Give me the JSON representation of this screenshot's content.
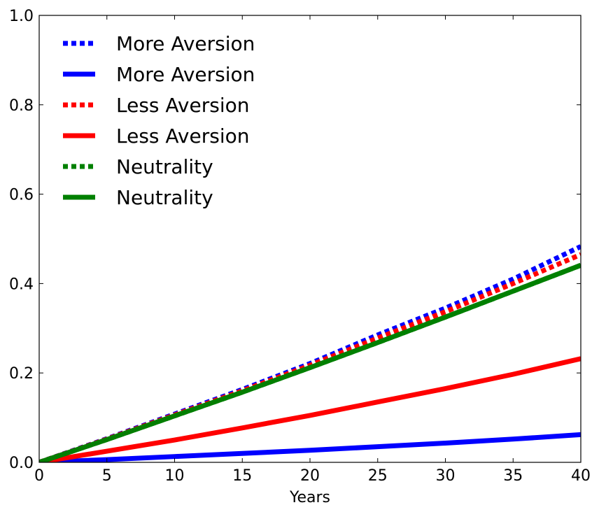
{
  "chart_data": {
    "type": "line",
    "title": "",
    "xlabel": "Years",
    "ylabel": "",
    "xlim": [
      0,
      40
    ],
    "ylim": [
      0,
      1.0
    ],
    "x_ticks": [
      0,
      5,
      10,
      15,
      20,
      25,
      30,
      35,
      40
    ],
    "y_ticks": [
      0.0,
      0.2,
      0.4,
      0.6,
      0.8,
      1.0
    ],
    "x_tick_labels": [
      "0",
      "5",
      "10",
      "15",
      "20",
      "25",
      "30",
      "35",
      "40"
    ],
    "y_tick_labels": [
      "0.0",
      "0.2",
      "0.4",
      "0.6",
      "0.8",
      "1.0"
    ],
    "legend_position": "top-left",
    "grid": false,
    "x": [
      0,
      5,
      10,
      15,
      20,
      25,
      30,
      35,
      40
    ],
    "series": [
      {
        "name": "More Aversion",
        "style": "dotted",
        "color": "#0000ff",
        "values": [
          0.0,
          0.053,
          0.108,
          0.163,
          0.221,
          0.285,
          0.345,
          0.41,
          0.483
        ]
      },
      {
        "name": "More Aversion",
        "style": "solid",
        "color": "#0000ff",
        "values": [
          0.0,
          0.006,
          0.013,
          0.02,
          0.027,
          0.035,
          0.043,
          0.052,
          0.062
        ]
      },
      {
        "name": "Less Aversion",
        "style": "dotted",
        "color": "#ff0000",
        "values": [
          0.0,
          0.052,
          0.106,
          0.16,
          0.217,
          0.278,
          0.337,
          0.4,
          0.465
        ]
      },
      {
        "name": "Less Aversion",
        "style": "solid",
        "color": "#ff0000",
        "values": [
          0.0,
          0.025,
          0.05,
          0.077,
          0.105,
          0.135,
          0.165,
          0.197,
          0.232
        ]
      },
      {
        "name": "Neutrality",
        "style": "dotted",
        "color": "#008000",
        "values": [
          0.0,
          0.051,
          0.104,
          0.157,
          0.212,
          0.268,
          0.325,
          0.383,
          0.441
        ]
      },
      {
        "name": "Neutrality",
        "style": "solid",
        "color": "#008000",
        "values": [
          0.0,
          0.051,
          0.104,
          0.157,
          0.212,
          0.268,
          0.325,
          0.383,
          0.441
        ]
      }
    ]
  }
}
